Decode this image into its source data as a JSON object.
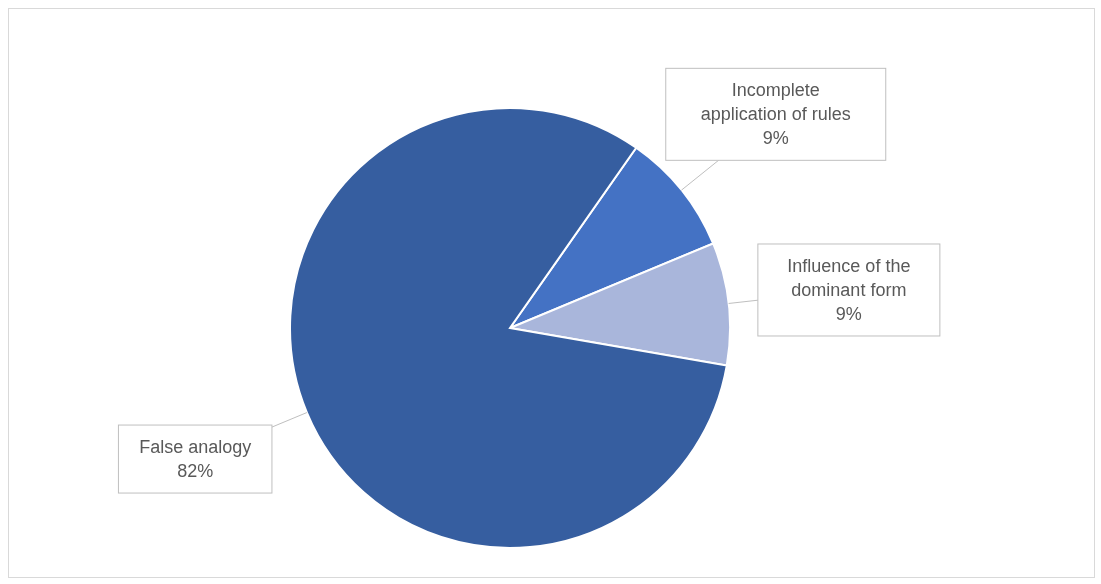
{
  "chart_data": {
    "type": "pie",
    "categories": [
      "Incomplete application of rules",
      "Influence of the dominant form",
      "False analogy"
    ],
    "values": [
      9,
      9,
      82
    ],
    "colors": [
      "#4472c4",
      "#a9b6db",
      "#365ea0"
    ],
    "value_labels": [
      "9%",
      "9%",
      "82%"
    ],
    "legend": false
  }
}
